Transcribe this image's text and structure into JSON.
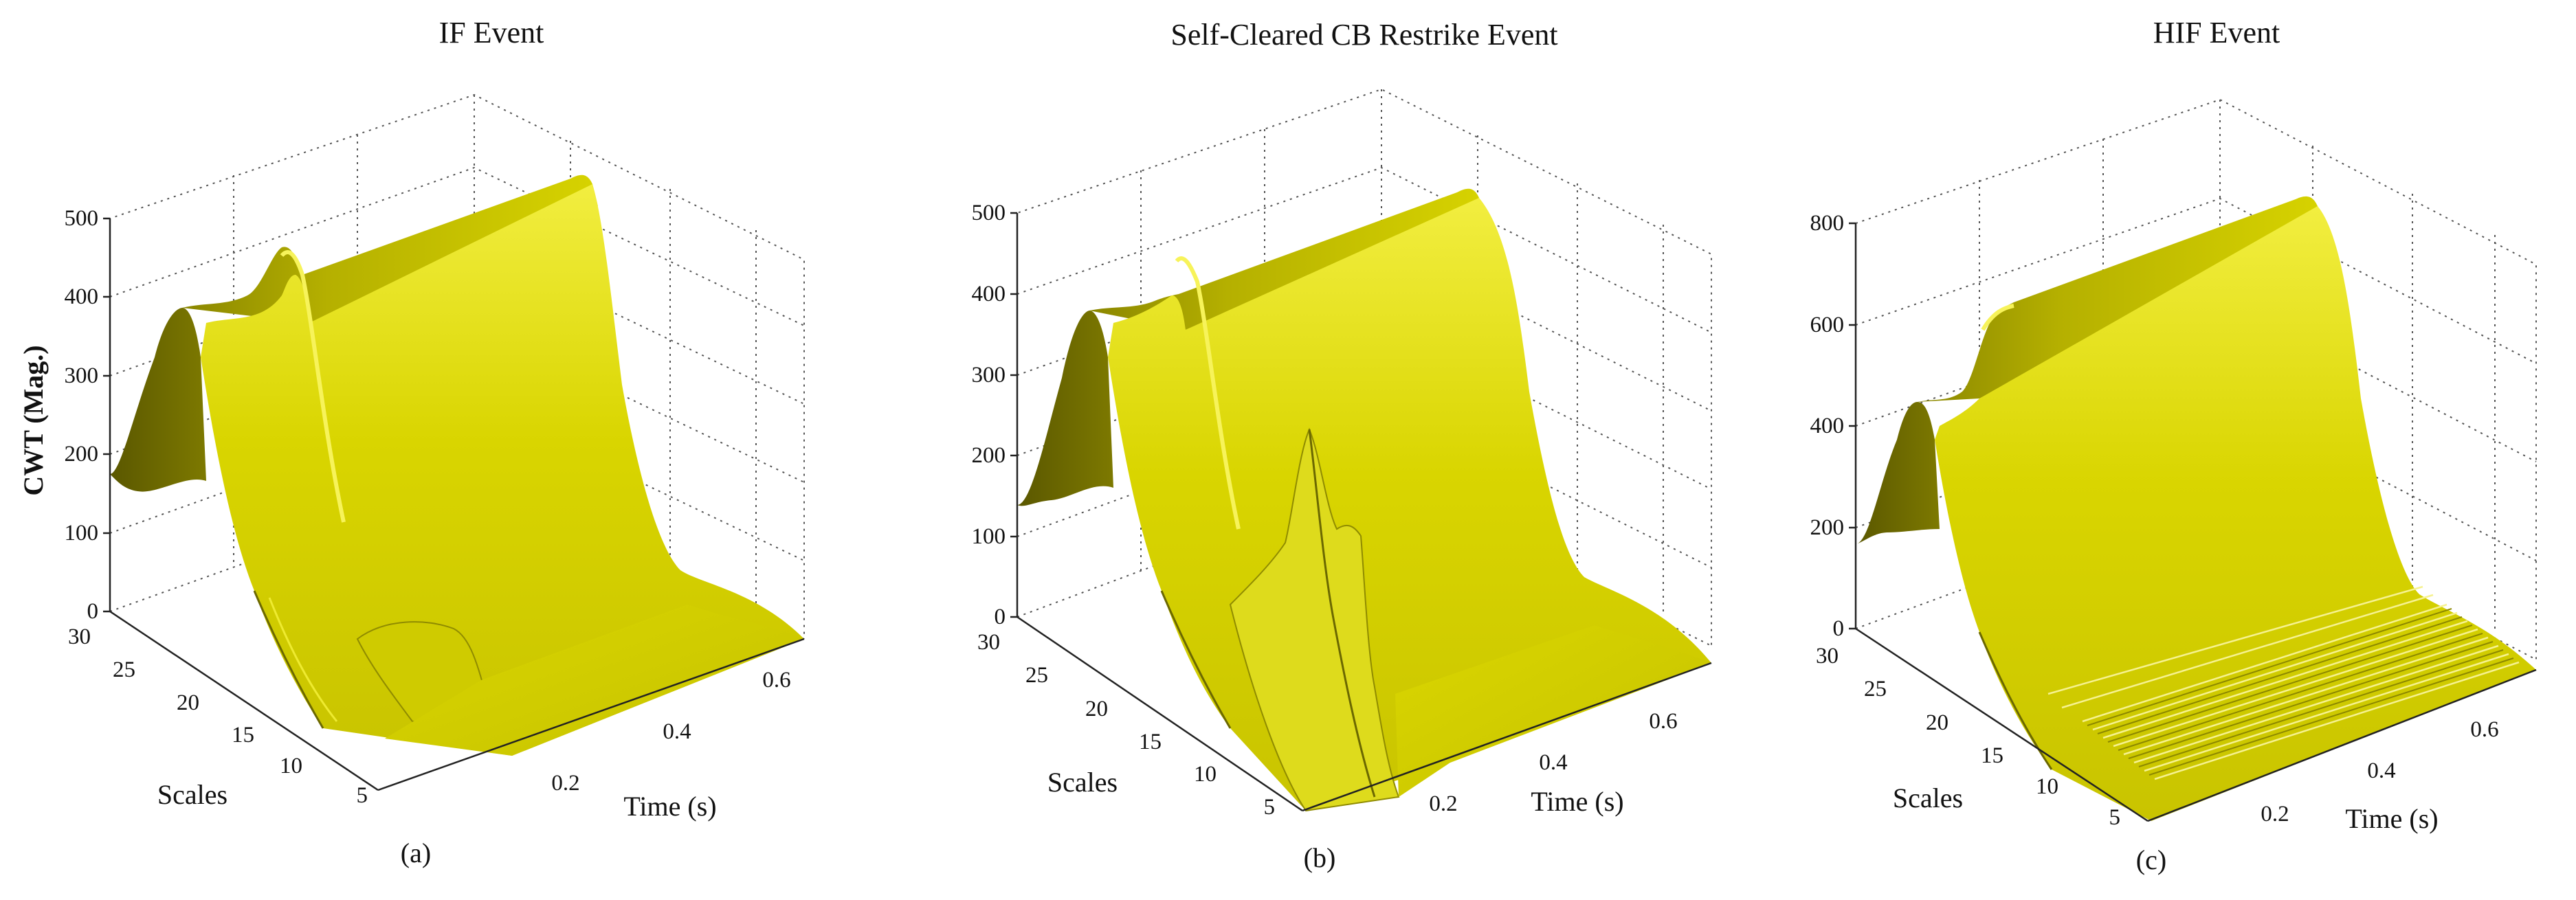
{
  "figure": {
    "panels": [
      {
        "id": "a",
        "title": "IF Event",
        "sublabel": "(a)",
        "zlabel": "CWT (Mag.)",
        "xlabel": "Time (s)",
        "ylabel": "Scales",
        "zlim": [
          0,
          500
        ],
        "ztick_labels": [
          "0",
          "100",
          "200",
          "300",
          "400",
          "500"
        ],
        "xtick_labels": [
          "0.2",
          "0.4",
          "0.6"
        ],
        "ytick_labels": [
          "5",
          "10",
          "15",
          "20",
          "25",
          "30"
        ]
      },
      {
        "id": "b",
        "title": "Self-Cleared CB Restrike Event",
        "sublabel": "(b)",
        "xlabel": "Time (s)",
        "ylabel": "Scales",
        "zlim": [
          0,
          500
        ],
        "ztick_labels": [
          "0",
          "100",
          "200",
          "300",
          "400",
          "500"
        ],
        "xtick_labels": [
          "0.2",
          "0.4",
          "0.6"
        ],
        "ytick_labels": [
          "5",
          "10",
          "15",
          "20",
          "25",
          "30"
        ]
      },
      {
        "id": "c",
        "title": "HIF Event",
        "sublabel": "(c)",
        "xlabel": "Time (s)",
        "ylabel": "Scales",
        "zlim": [
          0,
          800
        ],
        "ztick_labels": [
          "0",
          "200",
          "400",
          "600",
          "800"
        ],
        "xtick_labels": [
          "0.2",
          "0.4",
          "0.6"
        ],
        "ytick_labels": [
          "5",
          "10",
          "15",
          "20",
          "25",
          "30"
        ]
      }
    ]
  },
  "chart_data": [
    {
      "type": "surface",
      "title": "IF Event",
      "xlabel": "Time (s)",
      "ylabel": "Scales",
      "zlabel": "CWT (Mag.)",
      "xlim": [
        0,
        0.7
      ],
      "ylim": [
        1,
        30
      ],
      "zlim": [
        0,
        500
      ],
      "grid": true,
      "surface_color": "#d4d000",
      "ridge_peak_values": [
        {
          "time": 0.0,
          "scale": 30,
          "value": 170
        },
        {
          "time": 0.02,
          "scale": 30,
          "value": 380
        },
        {
          "time": 0.1,
          "scale": 30,
          "value": 440
        },
        {
          "time": 0.7,
          "scale": 30,
          "value": 430
        }
      ],
      "low_scale_value": 5
    },
    {
      "type": "surface",
      "title": "Self-Cleared CB Restrike Event",
      "xlabel": "Time (s)",
      "ylabel": "Scales",
      "zlim": [
        0,
        500
      ],
      "xlim": [
        0,
        0.7
      ],
      "ylim": [
        1,
        30
      ],
      "grid": true,
      "surface_color": "#d4d000",
      "ridge_peak_values": [
        {
          "time": 0.0,
          "scale": 30,
          "value": 140
        },
        {
          "time": 0.02,
          "scale": 30,
          "value": 380
        },
        {
          "time": 0.1,
          "scale": 30,
          "value": 395
        },
        {
          "time": 0.7,
          "scale": 30,
          "value": 395
        }
      ],
      "transient_spike": {
        "time": 0.15,
        "scale": 10,
        "value": 260
      },
      "low_scale_value": 5
    },
    {
      "type": "surface",
      "title": "HIF Event",
      "xlabel": "Time (s)",
      "ylabel": "Scales",
      "zlim": [
        0,
        800
      ],
      "xlim": [
        0,
        0.7
      ],
      "ylim": [
        1,
        30
      ],
      "grid": true,
      "surface_color": "#d4d000",
      "ridge_peak_values": [
        {
          "time": 0.0,
          "scale": 30,
          "value": 160
        },
        {
          "time": 0.02,
          "scale": 30,
          "value": 440
        },
        {
          "time": 0.1,
          "scale": 30,
          "value": 620
        },
        {
          "time": 0.7,
          "scale": 30,
          "value": 660
        }
      ],
      "low_scale_value": 20
    }
  ]
}
